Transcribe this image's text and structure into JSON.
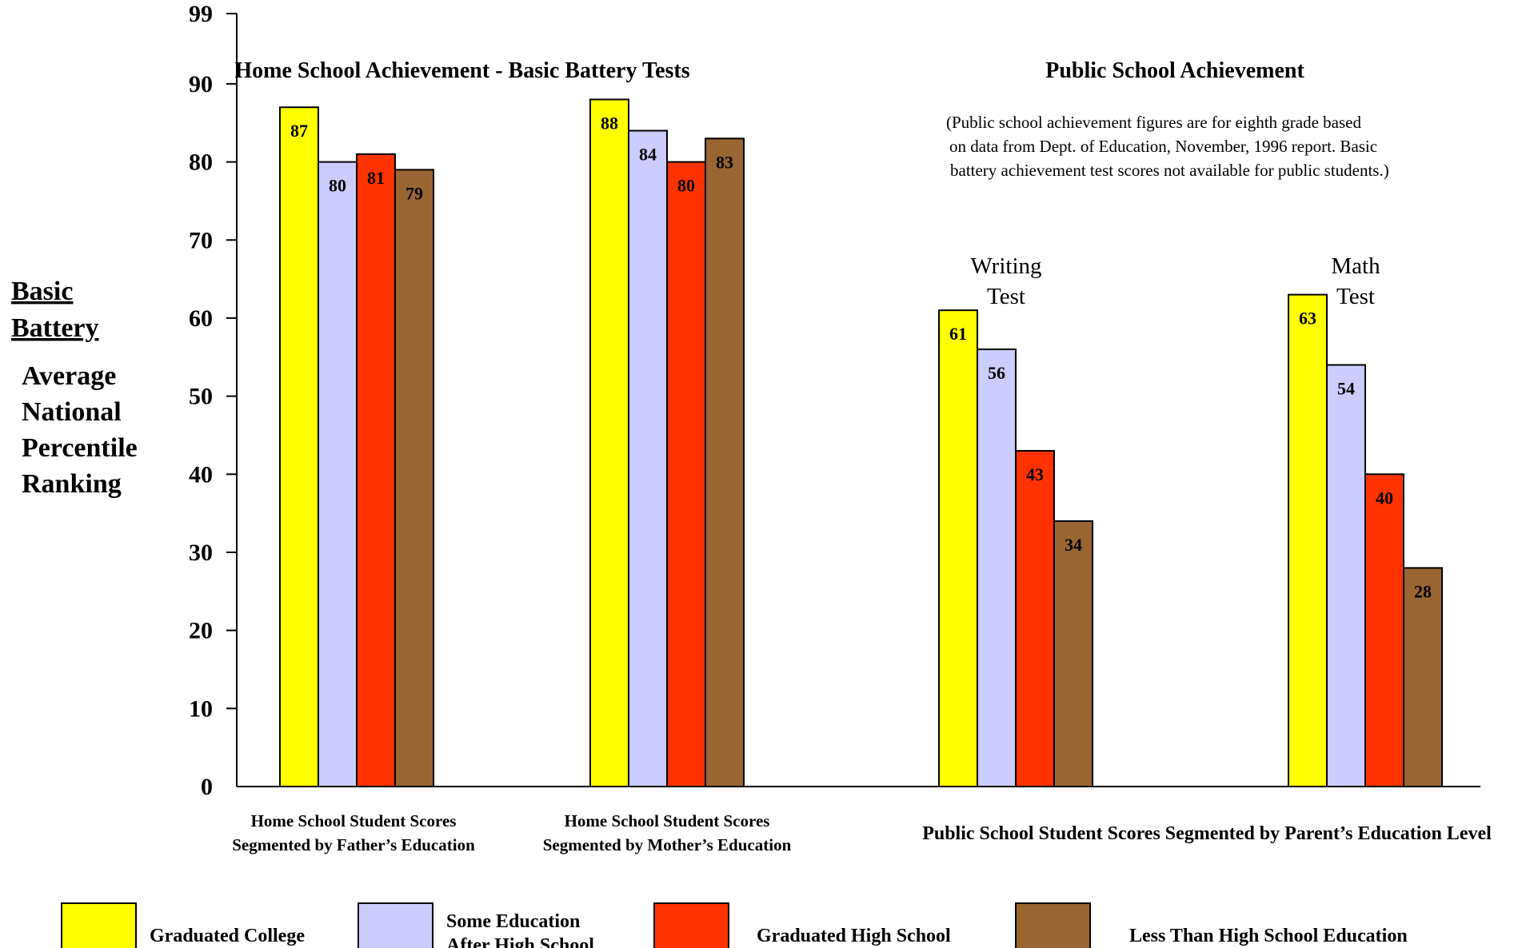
{
  "chart_data": {
    "type": "bar",
    "title": "Home School Achievement - Basic Battery Tests",
    "title_right": "Public School Achievement",
    "note": [
      "(Public school achievement figures are for eighth grade based",
      " on data from Dept. of Education, November, 1996 report.  Basic",
      "battery achievement test scores not available for public students.)"
    ],
    "ylabel_underlined": [
      "Basic",
      "Battery"
    ],
    "ylabel": [
      "Average",
      "National",
      "Percentile",
      "Ranking"
    ],
    "yticks": [
      0,
      10,
      20,
      30,
      40,
      50,
      60,
      70,
      80,
      90,
      99
    ],
    "ylim": [
      0,
      99
    ],
    "series": [
      {
        "name": "Graduated College",
        "color": "#ffff00"
      },
      {
        "name": "Some Education After High School",
        "legend_lines": [
          "Some Education",
          "After High School"
        ],
        "color": "#ccccff"
      },
      {
        "name": "Graduated High School",
        "color": "#ff3300"
      },
      {
        "name": "Less Than High School Education",
        "color": "#996633"
      }
    ],
    "groups": [
      {
        "label": [
          "Home School Student Scores",
          "Segmented by Father’s Education"
        ],
        "values": [
          87,
          80,
          81,
          79
        ]
      },
      {
        "label": [
          "Home School Student Scores",
          "Segmented by Mother’s Education"
        ],
        "values": [
          88,
          84,
          80,
          83
        ]
      },
      {
        "sublabel": [
          "Writing",
          "Test"
        ],
        "values": [
          61,
          56,
          43,
          34
        ]
      },
      {
        "sublabel": [
          "Math",
          "Test"
        ],
        "values": [
          63,
          54,
          40,
          28
        ]
      }
    ],
    "public_group_label": "Public School Student Scores Segmented by Parent’s Education Level",
    "grid": false,
    "legend_position": "bottom"
  }
}
